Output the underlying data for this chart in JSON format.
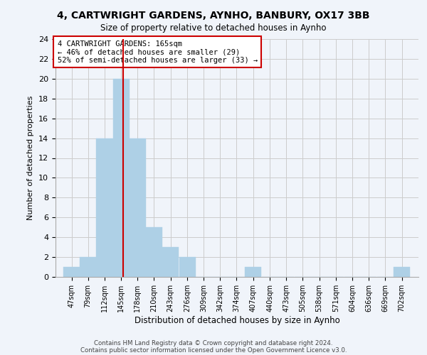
{
  "title": "4, CARTWRIGHT GARDENS, AYNHO, BANBURY, OX17 3BB",
  "subtitle": "Size of property relative to detached houses in Aynho",
  "xlabel": "Distribution of detached houses by size in Aynho",
  "ylabel": "Number of detached properties",
  "bin_labels": [
    "47sqm",
    "79sqm",
    "112sqm",
    "145sqm",
    "178sqm",
    "210sqm",
    "243sqm",
    "276sqm",
    "309sqm",
    "342sqm",
    "374sqm",
    "407sqm",
    "440sqm",
    "473sqm",
    "505sqm",
    "538sqm",
    "571sqm",
    "604sqm",
    "636sqm",
    "669sqm",
    "702sqm"
  ],
  "bin_edges": [
    47,
    79,
    112,
    145,
    178,
    210,
    243,
    276,
    309,
    342,
    374,
    407,
    440,
    473,
    505,
    538,
    571,
    604,
    636,
    669,
    702,
    735
  ],
  "counts": [
    1,
    2,
    14,
    20,
    14,
    5,
    3,
    2,
    0,
    0,
    0,
    1,
    0,
    0,
    0,
    0,
    0,
    0,
    0,
    0,
    1
  ],
  "bar_color": "#aed0e6",
  "bar_edge_color": "#aed0e6",
  "vline_x": 165,
  "vline_color": "#cc0000",
  "annotation_text": "4 CARTWRIGHT GARDENS: 165sqm\n← 46% of detached houses are smaller (29)\n52% of semi-detached houses are larger (33) →",
  "annotation_box_edge": "#cc0000",
  "annotation_bg": "#ffffff",
  "ylim": [
    0,
    24
  ],
  "yticks": [
    0,
    2,
    4,
    6,
    8,
    10,
    12,
    14,
    16,
    18,
    20,
    22,
    24
  ],
  "grid_color": "#cccccc",
  "footer1": "Contains HM Land Registry data © Crown copyright and database right 2024.",
  "footer2": "Contains public sector information licensed under the Open Government Licence v3.0.",
  "bg_color": "#f0f4fa"
}
